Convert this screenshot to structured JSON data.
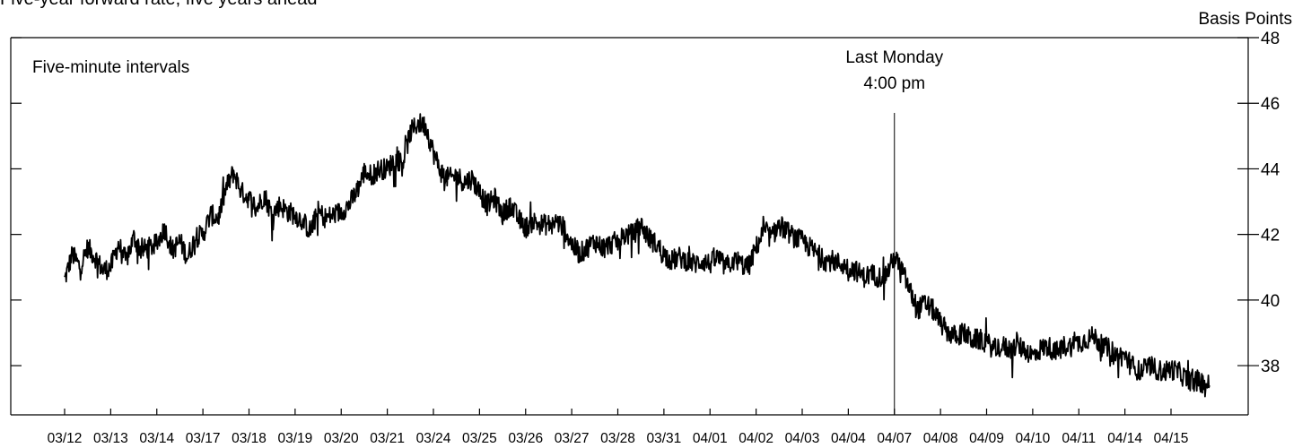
{
  "header_partial_text": "Five-year forward rate, five years ahead",
  "chart_data": {
    "type": "line",
    "annotation_top_left": "Five-minute intervals",
    "ylabel": "Basis Points",
    "ylim": [
      36.5,
      48
    ],
    "yticks": [
      38,
      40,
      42,
      44,
      46,
      48
    ],
    "categories": [
      "03/12",
      "03/13",
      "03/14",
      "03/17",
      "03/18",
      "03/19",
      "03/20",
      "03/21",
      "03/24",
      "03/25",
      "03/26",
      "03/27",
      "03/28",
      "03/31",
      "04/01",
      "04/02",
      "04/03",
      "04/04",
      "04/07",
      "04/08",
      "04/09",
      "04/10",
      "04/11",
      "04/14",
      "04/15"
    ],
    "marker": {
      "category": "04/07",
      "label_line1": "Last Monday",
      "label_line2": "4:00 pm"
    },
    "series": [
      {
        "day_values": [
          [
            40.6,
            41.4,
            41.0,
            41.6,
            41.3,
            40.9
          ],
          [
            41.0,
            41.7,
            41.2,
            41.9,
            41.5,
            41.6
          ],
          [
            41.7,
            42.2,
            41.5,
            41.8,
            41.3,
            41.9
          ],
          [
            42.0,
            42.6,
            42.5,
            43.4,
            43.9,
            43.3
          ],
          [
            43.1,
            42.8,
            43.2,
            42.6,
            42.9,
            42.7
          ],
          [
            42.6,
            42.4,
            42.1,
            42.7,
            42.5,
            42.6
          ],
          [
            42.7,
            42.9,
            43.3,
            43.9,
            43.8,
            44.0
          ],
          [
            44.0,
            44.3,
            44.2,
            45.1,
            45.4,
            45.3
          ],
          [
            44.5,
            43.9,
            43.7,
            43.8,
            43.6,
            43.7
          ],
          [
            43.3,
            42.9,
            43.1,
            42.6,
            42.9,
            42.5
          ],
          [
            42.2,
            42.4,
            42.3,
            42.3,
            42.4,
            42.2
          ],
          [
            41.7,
            41.4,
            41.6,
            41.8,
            41.6,
            41.7
          ],
          [
            41.8,
            42.0,
            42.0,
            42.3,
            41.9,
            41.7
          ],
          [
            41.4,
            41.2,
            41.3,
            41.2,
            41.1,
            41.2
          ],
          [
            41.1,
            41.3,
            41.0,
            41.2,
            41.1,
            41.0
          ],
          [
            41.6,
            42.1,
            41.9,
            42.3,
            42.1,
            41.9
          ],
          [
            41.8,
            41.6,
            41.4,
            41.2,
            41.2,
            41.1
          ],
          [
            41.0,
            40.9,
            40.7,
            40.8,
            40.7,
            40.8
          ],
          [
            41.3,
            40.9,
            40.3,
            39.7,
            39.9,
            39.7
          ],
          [
            39.3,
            39.0,
            38.9,
            39.0,
            38.8,
            38.8
          ],
          [
            38.7,
            38.5,
            38.6,
            38.5,
            38.6,
            38.5
          ],
          [
            38.3,
            38.5,
            38.6,
            38.4,
            38.6,
            38.6
          ],
          [
            38.7,
            38.8,
            38.9,
            38.6,
            38.5,
            38.3
          ],
          [
            38.3,
            38.0,
            37.8,
            38.0,
            37.9,
            37.8
          ],
          [
            37.9,
            37.8,
            37.6,
            37.5,
            37.5,
            37.4
          ]
        ]
      }
    ],
    "legend": "none",
    "grid": false
  },
  "colors": {
    "line": "#000000",
    "axis": "#000000",
    "background": "#ffffff"
  }
}
